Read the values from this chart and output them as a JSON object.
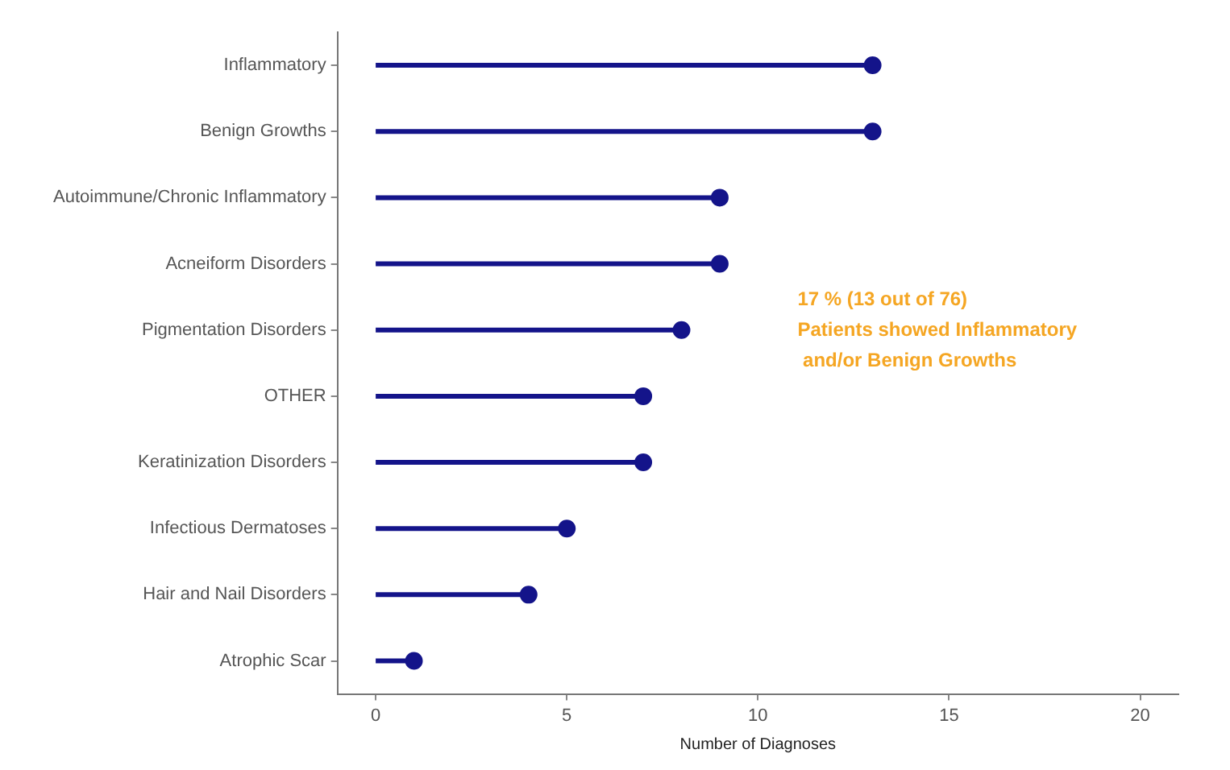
{
  "chart_data": {
    "type": "lollipop",
    "orientation": "horizontal",
    "xlabel": "Number of Diagnoses",
    "categories": [
      "Inflammatory",
      "Benign Growths",
      "Autoimmune/Chronic Inflammatory",
      "Acneiform Disorders",
      "Pigmentation Disorders",
      "OTHER",
      "Keratinization Disorders",
      "Infectious Dermatoses",
      "Hair and Nail Disorders",
      "Atrophic Scar"
    ],
    "values": [
      13,
      13,
      9,
      9,
      8,
      7,
      7,
      5,
      4,
      1
    ],
    "color": "#14148a",
    "marker": "circle",
    "grid": false,
    "legend": false,
    "xlim": [
      -1,
      21
    ],
    "xticks": [
      0,
      5,
      10,
      15,
      20
    ],
    "annotations": [
      "17 % (13 out of 76)\nPatients showed Inflammatory\n and/or Benign Growths"
    ]
  }
}
